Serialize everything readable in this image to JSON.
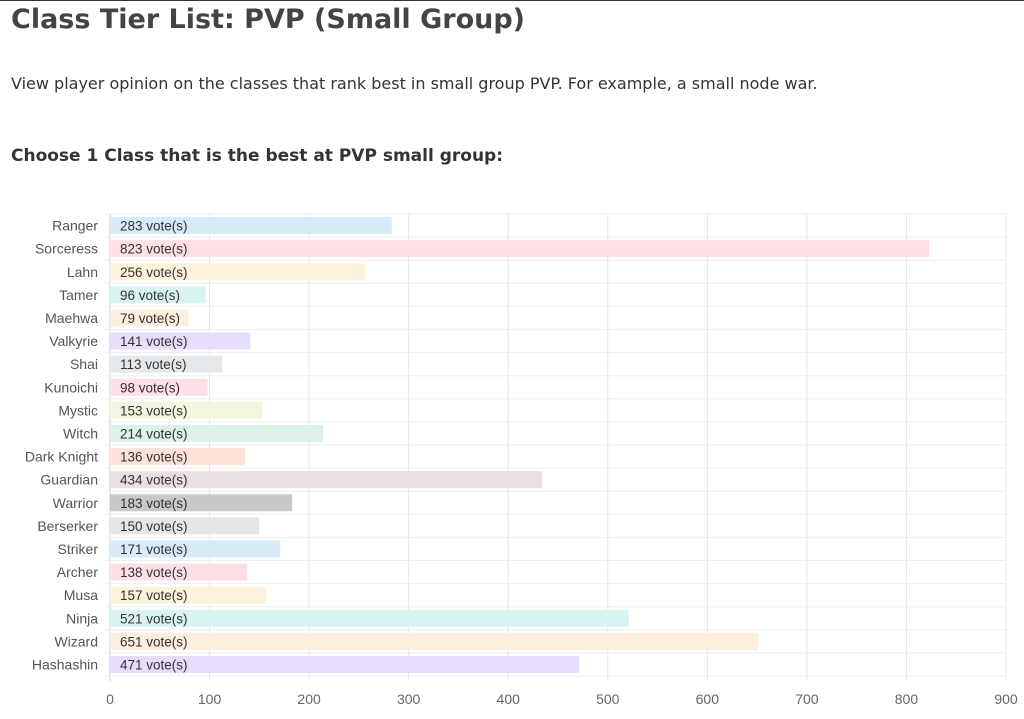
{
  "page": {
    "title": "Class Tier List: PVP (Small Group)",
    "description": "View player opinion on the classes that rank best in small group PVP. For example, a small node war.",
    "question": "Choose 1 Class that is the best at PVP small group:"
  },
  "chart_data": {
    "type": "bar",
    "orientation": "horizontal",
    "categories": [
      "Ranger",
      "Sorceress",
      "Lahn",
      "Tamer",
      "Maehwa",
      "Valkyrie",
      "Shai",
      "Kunoichi",
      "Mystic",
      "Witch",
      "Dark Knight",
      "Guardian",
      "Warrior",
      "Berserker",
      "Striker",
      "Archer",
      "Musa",
      "Ninja",
      "Wizard",
      "Hashashin"
    ],
    "values": [
      283,
      823,
      256,
      96,
      79,
      141,
      113,
      98,
      153,
      214,
      136,
      434,
      183,
      150,
      171,
      138,
      157,
      521,
      651,
      471
    ],
    "data_labels": [
      "283 vote(s)",
      "823 vote(s)",
      "256 vote(s)",
      "96 vote(s)",
      "79 vote(s)",
      "141 vote(s)",
      "113 vote(s)",
      "98 vote(s)",
      "153 vote(s)",
      "214 vote(s)",
      "136 vote(s)",
      "434 vote(s)",
      "183 vote(s)",
      "150 vote(s)",
      "171 vote(s)",
      "138 vote(s)",
      "157 vote(s)",
      "521 vote(s)",
      "651 vote(s)",
      "471 vote(s)"
    ],
    "colors": [
      "#d6eaf8",
      "#fde0e6",
      "#fdf2dc",
      "#d9f3f2",
      "#fdeede",
      "#e6ddfb",
      "#e6e9ec",
      "#fde0e6",
      "#f3f7df",
      "#dcf2e6",
      "#fde2da",
      "#e9dfe5",
      "#c9c9c9",
      "#e6e6e6",
      "#d6eaf8",
      "#fde0e6",
      "#fdf2dc",
      "#d9f3f2",
      "#fdeede",
      "#e6ddfb"
    ],
    "xlim": [
      0,
      900
    ],
    "xticks": [
      0,
      100,
      200,
      300,
      400,
      500,
      600,
      700,
      800,
      900
    ],
    "grid": true,
    "title": "",
    "xlabel": "",
    "ylabel": ""
  }
}
